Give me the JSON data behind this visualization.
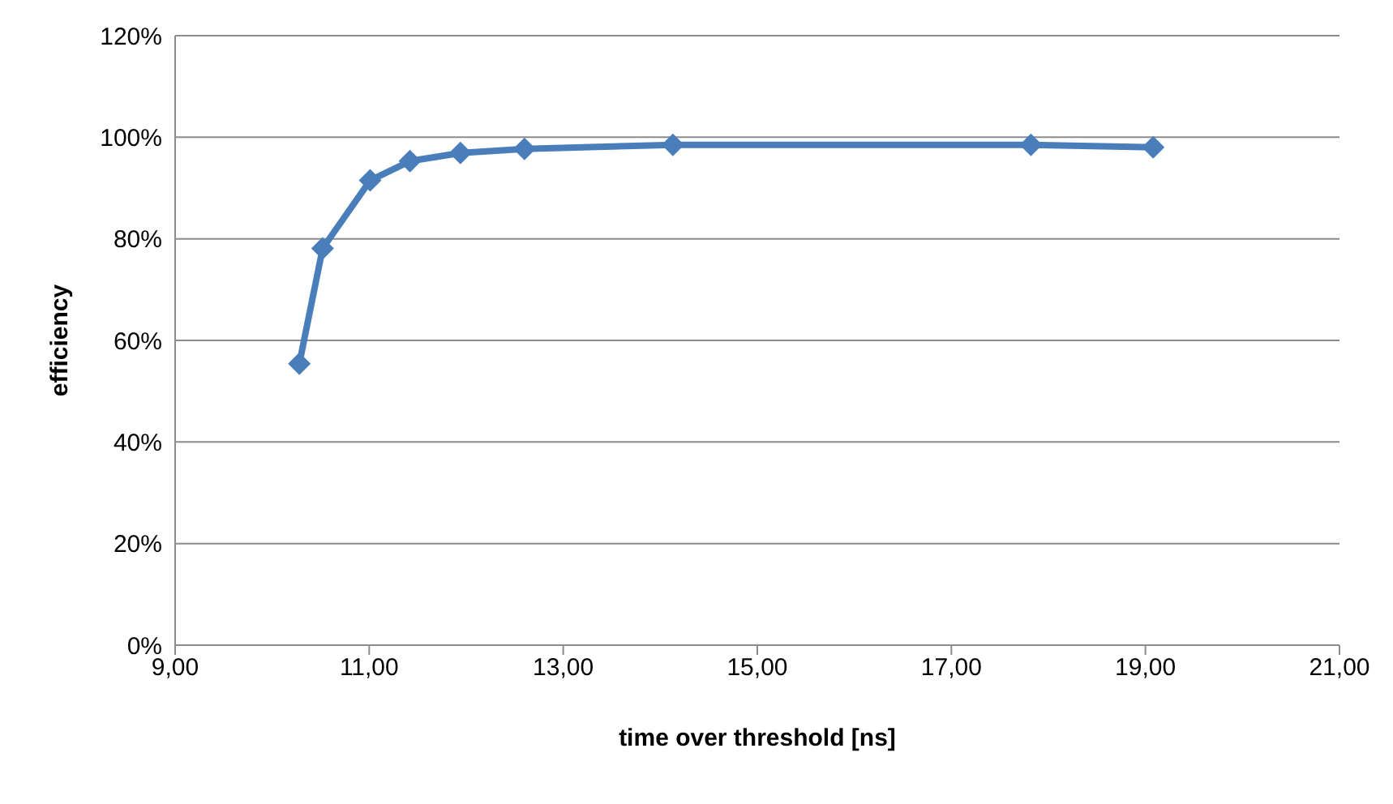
{
  "chart_data": {
    "type": "line",
    "xlabel": "time over threshold [ns]",
    "ylabel": "efficiency",
    "x": [
      10.28,
      10.52,
      11.01,
      11.42,
      11.94,
      12.6,
      14.13,
      17.82,
      19.08
    ],
    "series": [
      {
        "color": "#4a7ebb",
        "values": [
          55.4,
          78.1,
          91.5,
          95.3,
          96.9,
          97.7,
          98.5,
          98.5,
          98.0
        ]
      }
    ],
    "xlim": [
      9,
      21
    ],
    "xticks": [
      {
        "value": 9,
        "label": "9,00"
      },
      {
        "value": 11,
        "label": "11,00"
      },
      {
        "value": 13,
        "label": "13,00"
      },
      {
        "value": 15,
        "label": "15,00"
      },
      {
        "value": 17,
        "label": "17,00"
      },
      {
        "value": 19,
        "label": "19,00"
      },
      {
        "value": 21,
        "label": "21,00"
      }
    ],
    "ylim": [
      0,
      120
    ],
    "yticks": [
      {
        "value": 0,
        "label": "0%"
      },
      {
        "value": 20,
        "label": "20%"
      },
      {
        "value": 40,
        "label": "40%"
      },
      {
        "value": 60,
        "label": "60%"
      },
      {
        "value": 80,
        "label": "80%"
      },
      {
        "value": 100,
        "label": "100%"
      },
      {
        "value": 120,
        "label": "120%"
      }
    ],
    "grid": "y",
    "legend": false,
    "marker": "diamond",
    "line_style": "solid"
  }
}
